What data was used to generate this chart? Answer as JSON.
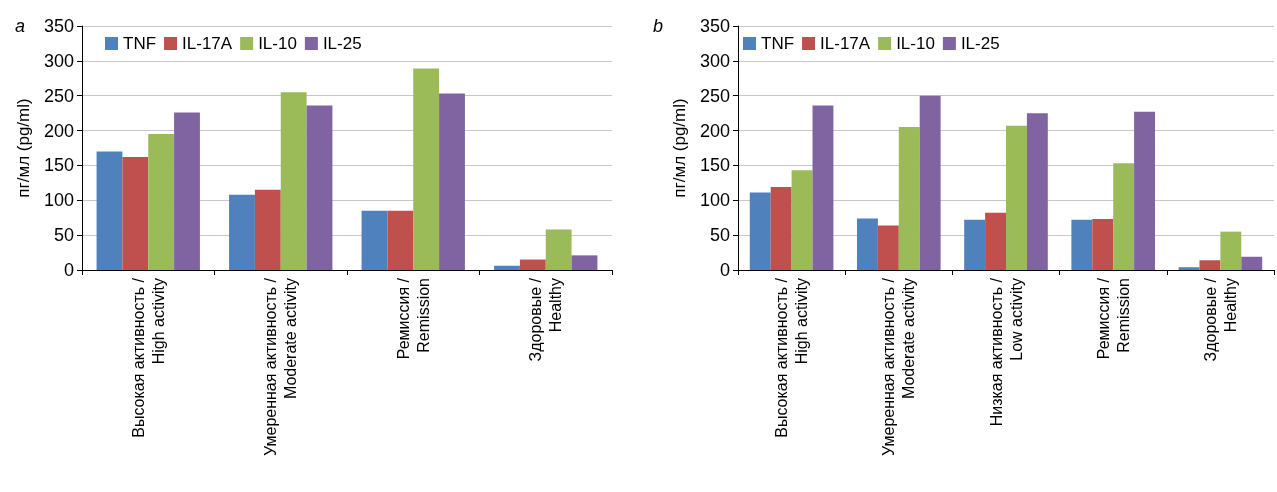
{
  "chart_data": [
    {
      "type": "bar",
      "title": "a",
      "ylabel": "пг/мл (pg/ml)",
      "categories": [
        "Высокая активность /\nHigh activity",
        "Умеренная активность /\nModerate activity",
        "Ремиссия /\nRemission",
        "Здоровые /\nHealthy"
      ],
      "series": [
        {
          "name": "TNF",
          "color": "#4f81bd",
          "values": [
            170,
            108,
            85,
            6
          ]
        },
        {
          "name": "IL-17A",
          "color": "#c0504d",
          "values": [
            162,
            115,
            85,
            15
          ]
        },
        {
          "name": "IL-10",
          "color": "#9bbb59",
          "values": [
            195,
            255,
            289,
            58
          ]
        },
        {
          "name": "IL-25",
          "color": "#8064a2",
          "values": [
            226,
            236,
            253,
            21
          ]
        }
      ],
      "ylim": [
        0,
        350
      ],
      "yticks": [
        0,
        50,
        100,
        150,
        200,
        250,
        300,
        350
      ],
      "grid": "y",
      "legend": "top left"
    },
    {
      "type": "bar",
      "title": "b",
      "ylabel": "пг/мл (pg/ml)",
      "categories": [
        "Высокая активность /\nHigh activity",
        "Умеренная активность /\nModerate activity",
        "Низкая активность /\nLow activity",
        "Ремиссия /\nRemission",
        "Здоровые /\nHealthy"
      ],
      "series": [
        {
          "name": "TNF",
          "color": "#4f81bd",
          "values": [
            111,
            74,
            72,
            72,
            4
          ]
        },
        {
          "name": "IL-17A",
          "color": "#c0504d",
          "values": [
            119,
            64,
            82,
            73,
            14
          ]
        },
        {
          "name": "IL-10",
          "color": "#9bbb59",
          "values": [
            143,
            205,
            207,
            153,
            55
          ]
        },
        {
          "name": "IL-25",
          "color": "#8064a2",
          "values": [
            236,
            250,
            225,
            227,
            19
          ]
        }
      ],
      "ylim": [
        0,
        350
      ],
      "yticks": [
        0,
        50,
        100,
        150,
        200,
        250,
        300,
        350
      ],
      "grid": "y",
      "legend": "top left"
    }
  ]
}
